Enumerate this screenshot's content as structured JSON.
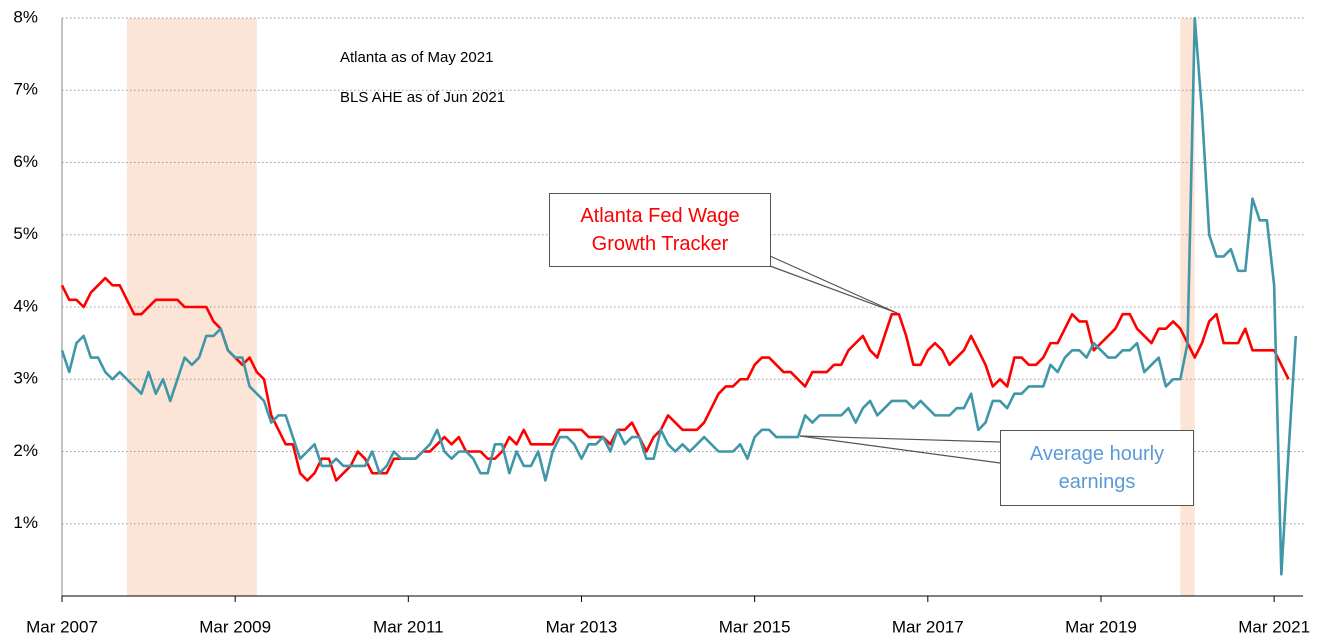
{
  "chart_data": {
    "type": "line",
    "annotations": [
      "Atlanta as of May 2021",
      "BLS AHE as of Jun 2021"
    ],
    "xlim": [
      "2007-03",
      "2021-07"
    ],
    "xticks": [
      {
        "value": "2007-03",
        "label": "Mar 2007"
      },
      {
        "value": "2009-03",
        "label": "Mar 2009"
      },
      {
        "value": "2011-03",
        "label": "Mar 2011"
      },
      {
        "value": "2013-03",
        "label": "Mar 2013"
      },
      {
        "value": "2015-03",
        "label": "Mar 2015"
      },
      {
        "value": "2017-03",
        "label": "Mar 2017"
      },
      {
        "value": "2019-03",
        "label": "Mar 2019"
      },
      {
        "value": "2021-03",
        "label": "Mar 2021"
      }
    ],
    "ylim": [
      0,
      8
    ],
    "yticks": [
      {
        "value": 1,
        "label": "1%"
      },
      {
        "value": 2,
        "label": "2%"
      },
      {
        "value": 3,
        "label": "3%"
      },
      {
        "value": 4,
        "label": "4%"
      },
      {
        "value": 5,
        "label": "5%"
      },
      {
        "value": 6,
        "label": "6%"
      },
      {
        "value": 7,
        "label": "7%"
      },
      {
        "value": 8,
        "label": "8%"
      }
    ],
    "grid": true,
    "shaded_periods": [
      [
        "2007-12",
        "2009-06"
      ],
      [
        "2020-02",
        "2020-04"
      ]
    ],
    "shade_color": "#fce4d6",
    "start": "2007-03",
    "series": [
      {
        "name": "Atlanta Fed Wage Growth Tracker",
        "color": "#ff0000",
        "values": [
          4.3,
          4.1,
          4.1,
          4.0,
          4.2,
          4.3,
          4.4,
          4.3,
          4.3,
          4.1,
          3.9,
          3.9,
          4.0,
          4.1,
          4.1,
          4.1,
          4.1,
          4.0,
          4.0,
          4.0,
          4.0,
          3.8,
          3.7,
          3.4,
          3.3,
          3.2,
          3.3,
          3.1,
          3.0,
          2.5,
          2.3,
          2.1,
          2.1,
          1.7,
          1.6,
          1.7,
          1.9,
          1.9,
          1.6,
          1.7,
          1.8,
          2.0,
          1.9,
          1.7,
          1.7,
          1.7,
          1.9,
          1.9,
          1.9,
          1.9,
          2.0,
          2.0,
          2.1,
          2.2,
          2.1,
          2.2,
          2.0,
          2.0,
          2.0,
          1.9,
          1.9,
          2.0,
          2.2,
          2.1,
          2.3,
          2.1,
          2.1,
          2.1,
          2.1,
          2.3,
          2.3,
          2.3,
          2.3,
          2.2,
          2.2,
          2.2,
          2.1,
          2.3,
          2.3,
          2.4,
          2.2,
          2.0,
          2.2,
          2.3,
          2.5,
          2.4,
          2.3,
          2.3,
          2.3,
          2.4,
          2.6,
          2.8,
          2.9,
          2.9,
          3.0,
          3.0,
          3.2,
          3.3,
          3.3,
          3.2,
          3.1,
          3.1,
          3.0,
          2.9,
          3.1,
          3.1,
          3.1,
          3.2,
          3.2,
          3.4,
          3.5,
          3.6,
          3.4,
          3.3,
          3.6,
          3.9,
          3.9,
          3.6,
          3.2,
          3.2,
          3.4,
          3.5,
          3.4,
          3.2,
          3.3,
          3.4,
          3.6,
          3.4,
          3.2,
          2.9,
          3.0,
          2.9,
          3.3,
          3.3,
          3.2,
          3.2,
          3.3,
          3.5,
          3.5,
          3.7,
          3.9,
          3.8,
          3.8,
          3.4,
          3.5,
          3.6,
          3.7,
          3.9,
          3.9,
          3.7,
          3.6,
          3.5,
          3.7,
          3.7,
          3.8,
          3.7,
          3.5,
          3.3,
          3.5,
          3.8,
          3.9,
          3.5,
          3.5,
          3.5,
          3.7,
          3.4,
          3.4,
          3.4,
          3.4,
          3.2,
          3.0,
          null
        ]
      },
      {
        "name": "Average hourly earnings",
        "color": "#3f97a8",
        "values": [
          3.4,
          3.1,
          3.5,
          3.6,
          3.3,
          3.3,
          3.1,
          3.0,
          3.1,
          3.0,
          2.9,
          2.8,
          3.1,
          2.8,
          3.0,
          2.7,
          3.0,
          3.3,
          3.2,
          3.3,
          3.6,
          3.6,
          3.7,
          3.4,
          3.3,
          3.3,
          2.9,
          2.8,
          2.7,
          2.4,
          2.5,
          2.5,
          2.2,
          1.9,
          2.0,
          2.1,
          1.8,
          1.8,
          1.9,
          1.8,
          1.8,
          1.8,
          1.8,
          2.0,
          1.7,
          1.8,
          2.0,
          1.9,
          1.9,
          1.9,
          2.0,
          2.1,
          2.3,
          2.0,
          1.9,
          2.0,
          2.0,
          1.9,
          1.7,
          1.7,
          2.1,
          2.1,
          1.7,
          2.0,
          1.8,
          1.8,
          2.0,
          1.6,
          2.0,
          2.2,
          2.2,
          2.1,
          1.9,
          2.1,
          2.1,
          2.2,
          2.0,
          2.3,
          2.1,
          2.2,
          2.2,
          1.9,
          1.9,
          2.3,
          2.1,
          2.0,
          2.1,
          2.0,
          2.1,
          2.2,
          2.1,
          2.0,
          2.0,
          2.0,
          2.1,
          1.9,
          2.2,
          2.3,
          2.3,
          2.2,
          2.2,
          2.2,
          2.2,
          2.5,
          2.4,
          2.5,
          2.5,
          2.5,
          2.5,
          2.6,
          2.4,
          2.6,
          2.7,
          2.5,
          2.6,
          2.7,
          2.7,
          2.7,
          2.6,
          2.7,
          2.6,
          2.5,
          2.5,
          2.5,
          2.6,
          2.6,
          2.8,
          2.3,
          2.4,
          2.7,
          2.7,
          2.6,
          2.8,
          2.8,
          2.9,
          2.9,
          2.9,
          3.2,
          3.1,
          3.3,
          3.4,
          3.4,
          3.3,
          3.5,
          3.4,
          3.3,
          3.3,
          3.4,
          3.4,
          3.5,
          3.1,
          3.2,
          3.3,
          2.9,
          3.0,
          3.0,
          3.5,
          8.0,
          6.7,
          5.0,
          4.7,
          4.7,
          4.8,
          4.5,
          4.5,
          5.5,
          5.2,
          5.2,
          4.3,
          0.3,
          2.0,
          3.6
        ]
      }
    ]
  }
}
